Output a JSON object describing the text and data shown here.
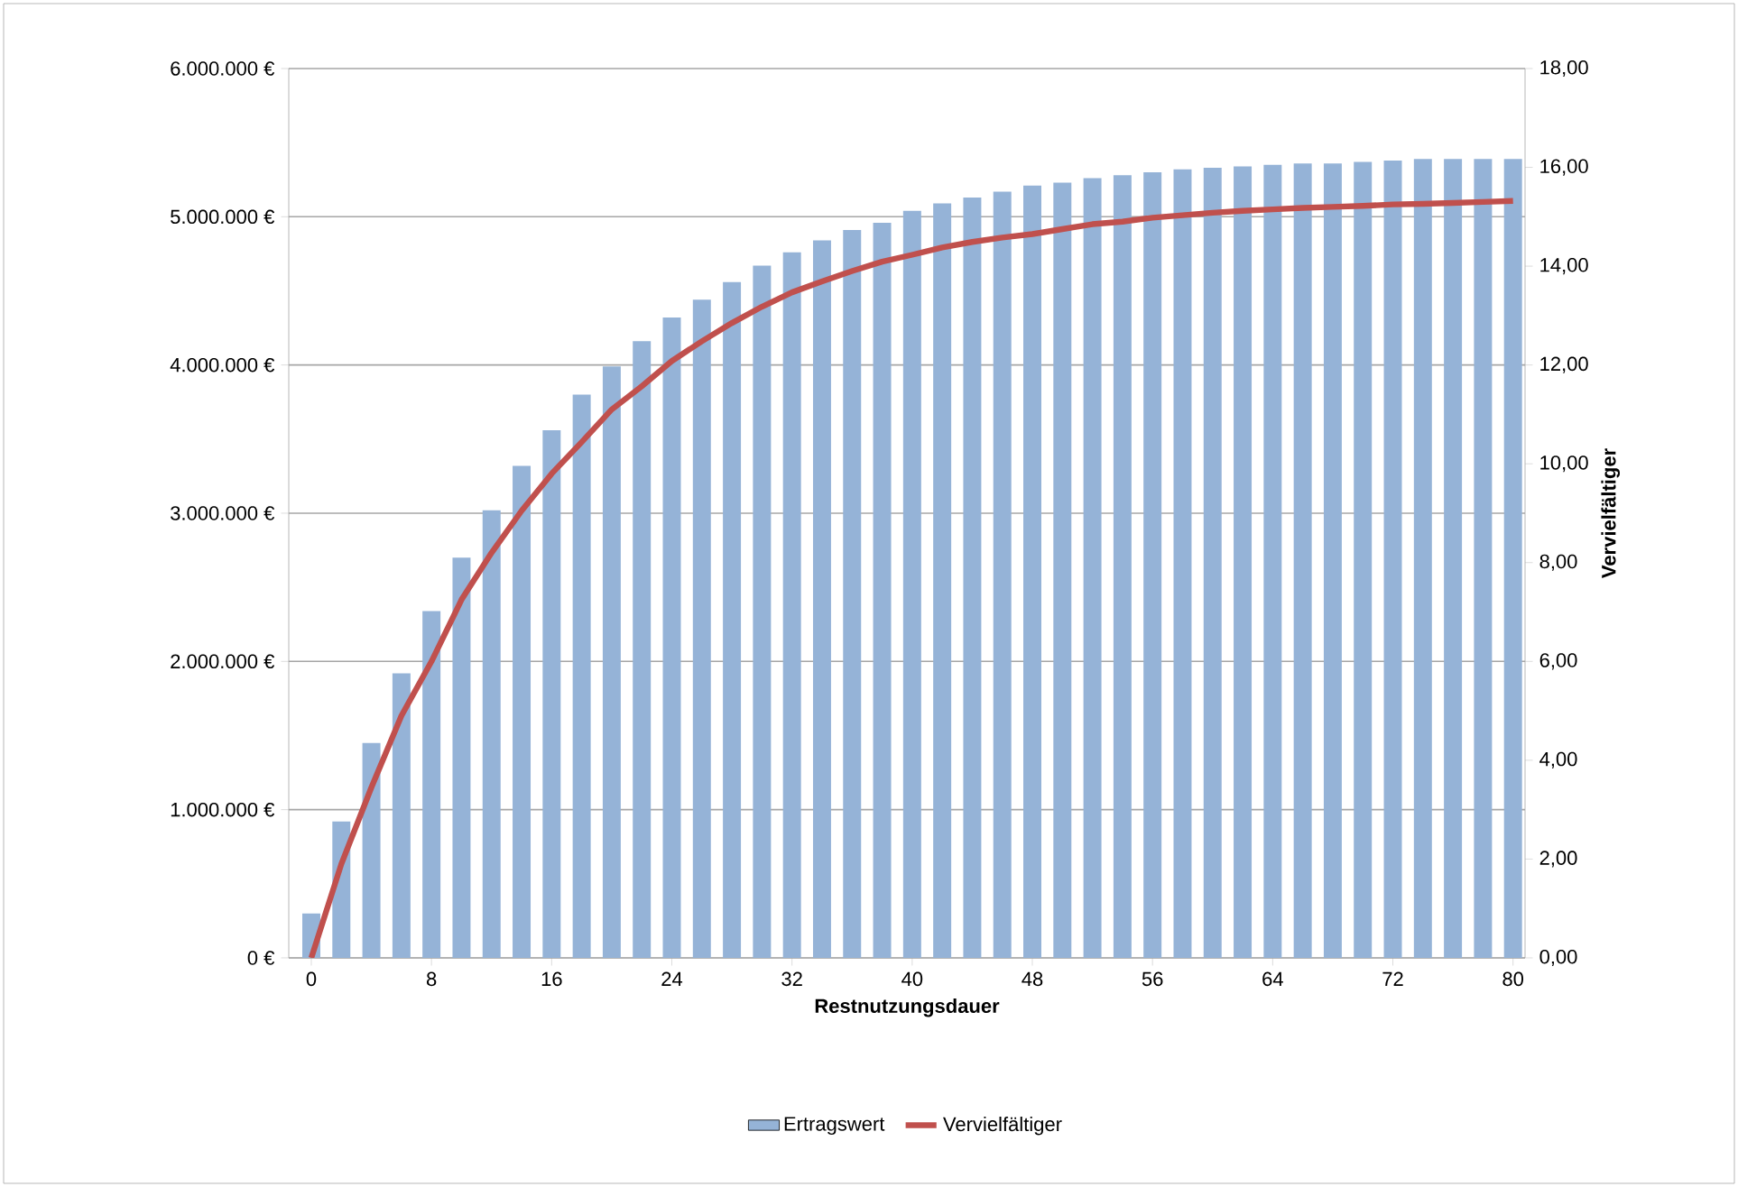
{
  "chart_data": {
    "type": "bar",
    "xlabel": "Restnutzungsdauer",
    "y2label": "Vervielfältiger",
    "x": [
      0,
      2,
      4,
      6,
      8,
      10,
      12,
      14,
      16,
      18,
      20,
      22,
      24,
      26,
      28,
      30,
      32,
      34,
      36,
      38,
      40,
      42,
      44,
      46,
      48,
      50,
      52,
      54,
      56,
      58,
      60,
      62,
      64,
      66,
      68,
      70,
      72,
      74,
      76,
      78,
      80
    ],
    "series": [
      {
        "name": "Ertragswert",
        "color": "#95b3d7",
        "values": [
          300000,
          920000,
          1450000,
          1920000,
          2340000,
          2700000,
          3020000,
          3320000,
          3560000,
          3800000,
          3990000,
          4160000,
          4320000,
          4440000,
          4560000,
          4670000,
          4760000,
          4840000,
          4910000,
          4960000,
          5040000,
          5090000,
          5130000,
          5170000,
          5210000,
          5230000,
          5260000,
          5280000,
          5300000,
          5320000,
          5330000,
          5340000,
          5350000,
          5360000,
          5360000,
          5370000,
          5380000,
          5390000,
          5390000,
          5390000,
          5390000
        ]
      },
      {
        "name": "Vervielfältiger",
        "type": "line",
        "axis": "y2",
        "color": "#c0504d",
        "values": [
          0,
          1.9,
          3.45,
          4.9,
          6.0,
          7.25,
          8.2,
          9.05,
          9.8,
          10.44,
          11.1,
          11.57,
          12.08,
          12.48,
          12.85,
          13.18,
          13.47,
          13.69,
          13.9,
          14.09,
          14.23,
          14.38,
          14.49,
          14.58,
          14.65,
          14.75,
          14.85,
          14.9,
          14.98,
          15.03,
          15.08,
          15.12,
          15.15,
          15.18,
          15.2,
          15.22,
          15.25,
          15.26,
          15.28,
          15.3,
          15.32
        ]
      }
    ],
    "xlim": [
      -1.5,
      80.8
    ],
    "xticks": [
      0,
      8,
      16,
      24,
      32,
      40,
      48,
      56,
      64,
      72,
      80
    ],
    "ylim": [
      0,
      6000000
    ],
    "yticks": [
      {
        "value": 0,
        "label": "0 €"
      },
      {
        "value": 1000000,
        "label": "1.000.000 €"
      },
      {
        "value": 2000000,
        "label": "2.000.000 €"
      },
      {
        "value": 3000000,
        "label": "3.000.000 €"
      },
      {
        "value": 4000000,
        "label": "4.000.000 €"
      },
      {
        "value": 5000000,
        "label": "5.000.000 €"
      },
      {
        "value": 6000000,
        "label": "6.000.000 €"
      }
    ],
    "y2lim": [
      0,
      18
    ],
    "y2ticks": [
      {
        "value": 0,
        "label": "0,00"
      },
      {
        "value": 2,
        "label": "2,00"
      },
      {
        "value": 4,
        "label": "4,00"
      },
      {
        "value": 6,
        "label": "6,00"
      },
      {
        "value": 8,
        "label": "8,00"
      },
      {
        "value": 10,
        "label": "10,00"
      },
      {
        "value": 12,
        "label": "12,00"
      },
      {
        "value": 14,
        "label": "14,00"
      },
      {
        "value": 16,
        "label": "16,00"
      },
      {
        "value": 18,
        "label": "18,00"
      }
    ],
    "grid": "y",
    "legend": "bottom"
  }
}
